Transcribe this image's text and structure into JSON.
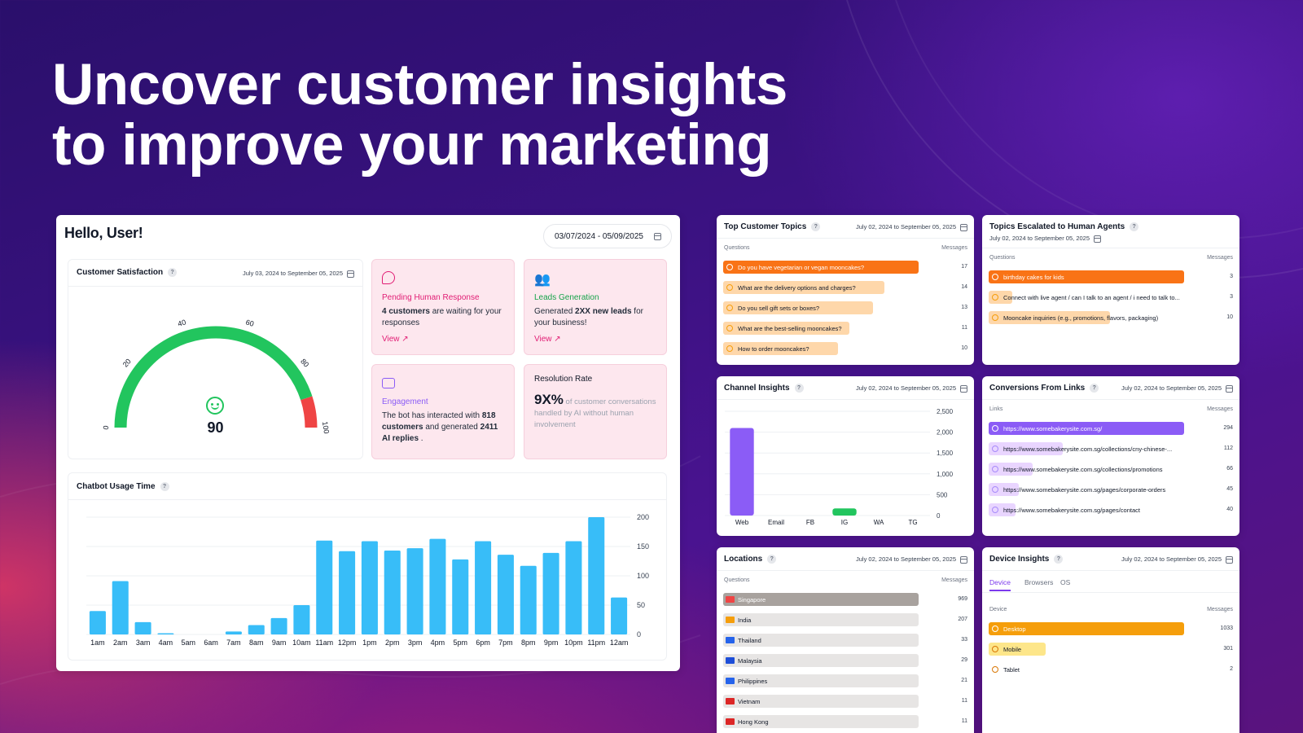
{
  "hero": {
    "line1": "Uncover customer insights",
    "line2": "to improve your marketing"
  },
  "dashboard": {
    "greeting": "Hello, User!",
    "date_range": "03/07/2024 - 05/09/2025",
    "satisfaction": {
      "title": "Customer Satisfaction",
      "date": "July 03, 2024 to September 05, 2025",
      "score": "90",
      "ticks": [
        "0",
        "20",
        "40",
        "60",
        "80",
        "100"
      ],
      "value": 90,
      "colors": {
        "good": "#22c55e",
        "bad": "#ef4444"
      }
    },
    "pending": {
      "title": "Pending Human Response",
      "bold": "4 customers",
      "rest": " are waiting for your responses",
      "link": "View"
    },
    "leads": {
      "title": "Leads Generation",
      "pre": "Generated ",
      "bold": "2XX new leads",
      "rest": " for your business!",
      "link": "View"
    },
    "engagement": {
      "title": "Engagement",
      "pre": "The bot has interacted with ",
      "b1": "818 customers",
      "mid": " and generated ",
      "b2": "2411 AI replies",
      "end": " ."
    },
    "resolution": {
      "title": "Resolution Rate",
      "value": "9X%",
      "rest": " of customer conversations handled by AI without human involvement"
    },
    "usage": {
      "title": "Chatbot Usage Time"
    }
  },
  "panels": {
    "topics": {
      "title": "Top Customer Topics",
      "date": "July 02, 2024 to September 05, 2025",
      "col1": "Questions",
      "col2": "Messages",
      "rows": [
        {
          "label": "Do you have vegetarian or vegan mooncakes?",
          "value": "17"
        },
        {
          "label": "What are the delivery options and charges?",
          "value": "14"
        },
        {
          "label": "Do you sell gift sets or boxes?",
          "value": "13"
        },
        {
          "label": "What are the best-selling mooncakes?",
          "value": "11"
        },
        {
          "label": "How to order mooncakes?",
          "value": "10"
        }
      ]
    },
    "escalated": {
      "title": "Topics Escalated to Human Agents",
      "date": "July 02, 2024 to September 05, 2025",
      "col1": "Questions",
      "col2": "Messages",
      "rows": [
        {
          "label": "birthday cakes for kids",
          "value": "3"
        },
        {
          "label": "Connect with live agent / can I talk to an agent / i need to talk to...",
          "value": "3"
        },
        {
          "label": "Mooncake inquiries (e.g., promotions, flavors, packaging)",
          "value": "10"
        }
      ]
    },
    "channel": {
      "title": "Channel Insights",
      "date": "July 02, 2024 to September 05, 2025"
    },
    "conversions": {
      "title": "Conversions From Links",
      "date": "July 02, 2024 to September 05, 2025",
      "col1": "Links",
      "col2": "Messages",
      "rows": [
        {
          "label": "https://www.somebakerysite.com.sg/",
          "value": "294"
        },
        {
          "label": "https://www.somebakerysite.com.sg/collections/cny-chinese-...",
          "value": "112"
        },
        {
          "label": "https://www.somebakerysite.com.sg/collections/promotions",
          "value": "66"
        },
        {
          "label": "https://www.somebakerysite.com.sg/pages/corporate-orders",
          "value": "45"
        },
        {
          "label": "https://www.somebakerysite.com.sg/pages/contact",
          "value": "40"
        }
      ]
    },
    "locations": {
      "title": "Locations",
      "date": "July 02, 2024 to September 05, 2025",
      "col1": "Questions",
      "col2": "Messages",
      "rows": [
        {
          "label": "Singapore",
          "value": "969"
        },
        {
          "label": "India",
          "value": "207"
        },
        {
          "label": "Thailand",
          "value": "33"
        },
        {
          "label": "Malaysia",
          "value": "29"
        },
        {
          "label": "Philippines",
          "value": "21"
        },
        {
          "label": "Vietnam",
          "value": "11"
        },
        {
          "label": "Hong Kong",
          "value": "11"
        }
      ]
    },
    "device": {
      "title": "Device Insights",
      "date": "July 02, 2024 to September 05, 2025",
      "tabs": [
        "Device",
        "Browsers",
        "OS"
      ],
      "col1": "Device",
      "col2": "Messages",
      "rows": [
        {
          "label": "Desktop",
          "value": "1033"
        },
        {
          "label": "Mobile",
          "value": "301"
        },
        {
          "label": "Tablet",
          "value": "2"
        }
      ]
    }
  },
  "chart_data": [
    {
      "type": "bar",
      "title": "Chatbot Usage Time",
      "categories": [
        "1am",
        "2am",
        "3am",
        "4am",
        "5am",
        "6am",
        "7am",
        "8am",
        "9am",
        "10am",
        "11am",
        "12pm",
        "1pm",
        "2pm",
        "3pm",
        "4pm",
        "5pm",
        "6pm",
        "7pm",
        "8pm",
        "9pm",
        "10pm",
        "11pm",
        "12am"
      ],
      "values": [
        40,
        91,
        21,
        2,
        0,
        0,
        5,
        16,
        28,
        50,
        160,
        142,
        159,
        143,
        147,
        163,
        128,
        159,
        136,
        117,
        139,
        159,
        200,
        63
      ],
      "ylim": [
        0,
        200
      ],
      "yticks": [
        "0",
        "50",
        "100",
        "150",
        "200"
      ],
      "grid": true,
      "color": "#38bdf8"
    },
    {
      "type": "bar",
      "title": "Channel Insights",
      "categories": [
        "Web",
        "Email",
        "FB",
        "IG",
        "WA",
        "TG"
      ],
      "values": [
        2100,
        0,
        0,
        170,
        0,
        0
      ],
      "colors": [
        "#8b5cf6",
        "#8b5cf6",
        "#8b5cf6",
        "#22c55e",
        "#22c55e",
        "#22c55e"
      ],
      "ylim": [
        0,
        2500
      ],
      "yticks": [
        "0",
        "500",
        "1,000",
        "1,500",
        "2,000",
        "2,500"
      ],
      "grid": true
    }
  ]
}
